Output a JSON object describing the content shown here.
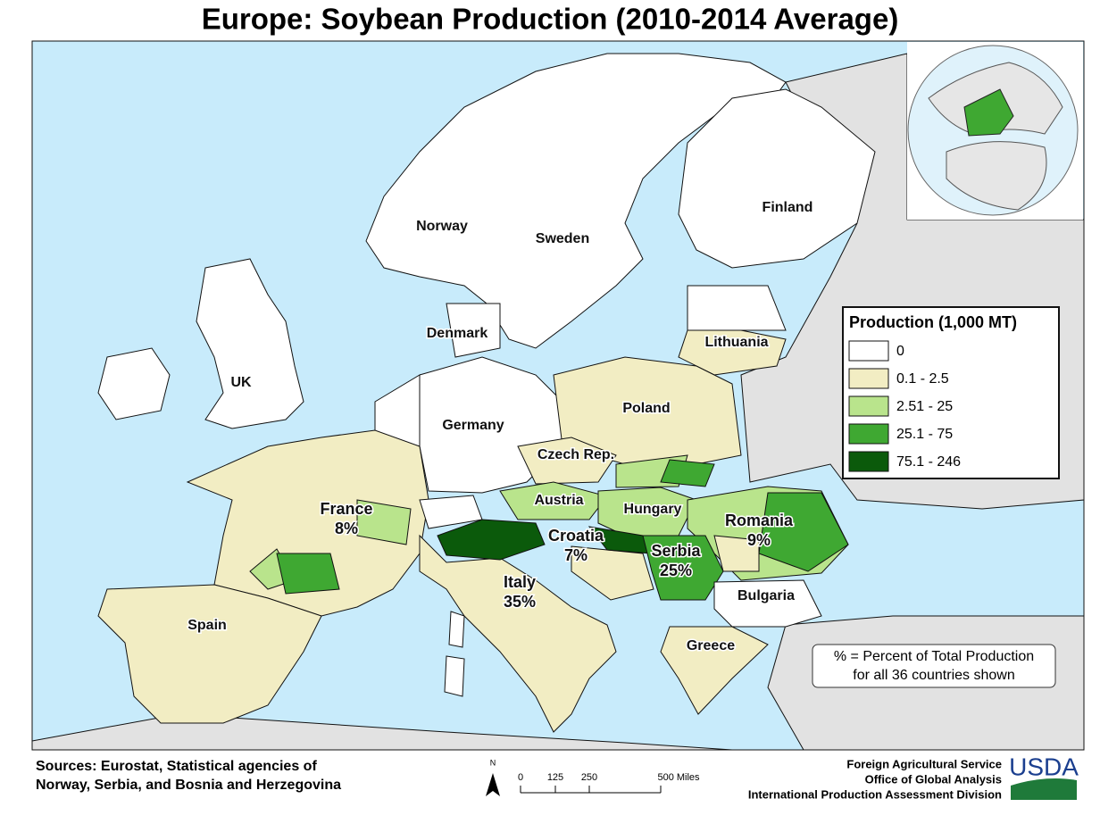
{
  "title": "Europe: Soybean Production (2010-2014 Average)",
  "legend": {
    "title": "Production (1,000 MT)",
    "classes": [
      {
        "label": "0",
        "color": "#ffffff"
      },
      {
        "label": "0.1 - 2.5",
        "color": "#f2edc3"
      },
      {
        "label": "2.51 - 25",
        "color": "#b9e48c"
      },
      {
        "label": "25.1 - 75",
        "color": "#3fa832"
      },
      {
        "label": "75.1 - 246",
        "color": "#0b5a0b"
      }
    ]
  },
  "countries": [
    {
      "name": "Norway"
    },
    {
      "name": "Sweden"
    },
    {
      "name": "Finland"
    },
    {
      "name": "Denmark"
    },
    {
      "name": "Lithuania"
    },
    {
      "name": "UK"
    },
    {
      "name": "Poland"
    },
    {
      "name": "Germany"
    },
    {
      "name": "Czech Rep."
    },
    {
      "name": "Austria"
    },
    {
      "name": "Hungary"
    },
    {
      "name": "France",
      "percent": "8%"
    },
    {
      "name": "Romania",
      "percent": "9%"
    },
    {
      "name": "Croatia",
      "percent": "7%"
    },
    {
      "name": "Serbia",
      "percent": "25%"
    },
    {
      "name": "Italy",
      "percent": "35%"
    },
    {
      "name": "Bulgaria"
    },
    {
      "name": "Spain"
    },
    {
      "name": "Greece"
    }
  ],
  "note": [
    "% = Percent of Total Production",
    "for all 36 countries shown"
  ],
  "sources": [
    "Sources: Eurostat, Statistical agencies of",
    "Norway, Serbia, and Bosnia and Herzegovina"
  ],
  "scale_bar": {
    "north": "N",
    "labels": [
      "0",
      "125",
      "250",
      "500 Miles"
    ]
  },
  "agency": [
    "Foreign Agricultural Service",
    "Office of Global Analysis",
    "International Production Assessment Division"
  ],
  "logo": "USDA"
}
